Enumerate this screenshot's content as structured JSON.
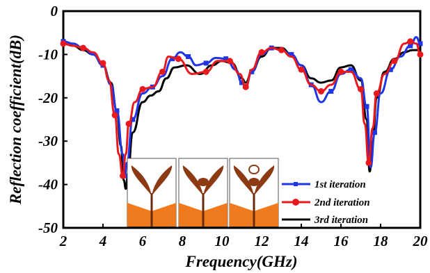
{
  "chart_data": {
    "type": "line",
    "title": "",
    "xlabel": "Frequency(GHz)",
    "ylabel": "Reflection coefficient(dB)",
    "xlim": [
      2,
      20
    ],
    "ylim": [
      -50,
      0
    ],
    "xticks": [
      2,
      4,
      6,
      8,
      10,
      12,
      14,
      16,
      18,
      20
    ],
    "yticks": [
      0,
      -10,
      -20,
      -30,
      -40,
      -50
    ],
    "grid": false,
    "legend": "bottom-right",
    "series": [
      {
        "name": "1st iteration",
        "color": "#1f35e6",
        "marker": "square",
        "x": [
          2.0,
          2.5,
          3.0,
          3.5,
          4.0,
          4.4,
          4.7,
          5.0,
          5.1,
          5.2,
          5.5,
          6.0,
          6.5,
          7.0,
          7.5,
          7.9,
          8.3,
          8.7,
          9.2,
          9.7,
          10.2,
          10.7,
          11.0,
          11.2,
          11.5,
          12.0,
          12.5,
          13.0,
          13.5,
          14.0,
          14.5,
          15.0,
          15.5,
          16.0,
          16.5,
          17.0,
          17.3,
          17.5,
          17.7,
          18.0,
          18.5,
          19.0,
          19.5,
          19.8,
          20.0
        ],
        "y": [
          -7,
          -7.5,
          -8.5,
          -10,
          -12.5,
          -17,
          -23,
          -33,
          -38,
          -35,
          -25,
          -19,
          -17.5,
          -15,
          -11,
          -9.5,
          -10.5,
          -12.5,
          -12,
          -10.8,
          -11,
          -13.5,
          -16.5,
          -17.5,
          -14,
          -10,
          -8.5,
          -9,
          -10,
          -12.5,
          -17,
          -21,
          -18.5,
          -14.5,
          -13.5,
          -15.5,
          -22,
          -36,
          -28,
          -19,
          -13.5,
          -10.5,
          -8,
          -6,
          -7.5
        ]
      },
      {
        "name": "2nd iteration",
        "color": "#e8191d",
        "marker": "circle",
        "x": [
          2.0,
          2.5,
          3.0,
          3.5,
          4.0,
          4.3,
          4.6,
          4.8,
          5.0,
          5.15,
          5.3,
          5.6,
          6.0,
          6.5,
          7.0,
          7.3,
          7.8,
          8.5,
          9.2,
          9.8,
          10.4,
          10.9,
          11.2,
          11.5,
          12.0,
          12.5,
          13.0,
          13.5,
          14.0,
          14.5,
          15.0,
          15.5,
          16.0,
          16.5,
          17.0,
          17.2,
          17.4,
          17.6,
          17.8,
          18.2,
          18.7,
          19.2,
          19.5,
          19.8,
          20.0
        ],
        "y": [
          -7.5,
          -8,
          -8.5,
          -9.5,
          -12,
          -16,
          -24,
          -33,
          -38,
          -33,
          -26,
          -21,
          -18,
          -17.5,
          -14,
          -10.5,
          -11,
          -14.5,
          -14,
          -11.5,
          -11.5,
          -14.5,
          -17.5,
          -13.5,
          -9.5,
          -8.5,
          -9,
          -10.5,
          -13.5,
          -17,
          -18.5,
          -17,
          -14,
          -14,
          -18,
          -26,
          -35,
          -27,
          -19,
          -14.5,
          -11.5,
          -7.5,
          -7,
          -7.5,
          -10
        ]
      },
      {
        "name": "3rd iteration",
        "color": "#000000",
        "marker": "none",
        "x": [
          2.0,
          2.5,
          3.0,
          3.5,
          4.0,
          4.4,
          4.7,
          4.9,
          5.05,
          5.15,
          5.25,
          5.5,
          6.0,
          6.4,
          6.8,
          7.2,
          7.6,
          8.2,
          8.9,
          9.5,
          10.0,
          10.5,
          11.0,
          11.2,
          11.5,
          12.0,
          12.5,
          13.0,
          13.5,
          14.0,
          14.5,
          15.0,
          15.5,
          16.0,
          16.5,
          17.0,
          17.3,
          17.45,
          17.6,
          17.8,
          18.2,
          18.7,
          19.2,
          19.6,
          20.0
        ],
        "y": [
          -7.5,
          -8,
          -9,
          -10,
          -12.5,
          -16.5,
          -23,
          -31,
          -39,
          -41,
          -38,
          -28,
          -21,
          -19.5,
          -18.5,
          -15.5,
          -13,
          -12.5,
          -14.5,
          -12.5,
          -11.5,
          -12,
          -15.5,
          -16.5,
          -14,
          -10.5,
          -8.5,
          -8.5,
          -10,
          -12.5,
          -15.5,
          -16.5,
          -16,
          -13,
          -12.5,
          -16,
          -25,
          -37,
          -30,
          -20,
          -14,
          -11,
          -9.5,
          -9,
          -9
        ]
      }
    ]
  },
  "inset": {
    "name": "iteration antenna geometries",
    "colors": {
      "petal": "#8b3a14",
      "ground": "#f07b1e",
      "feed": "#6b2a0c",
      "background": "#ffffff"
    }
  }
}
